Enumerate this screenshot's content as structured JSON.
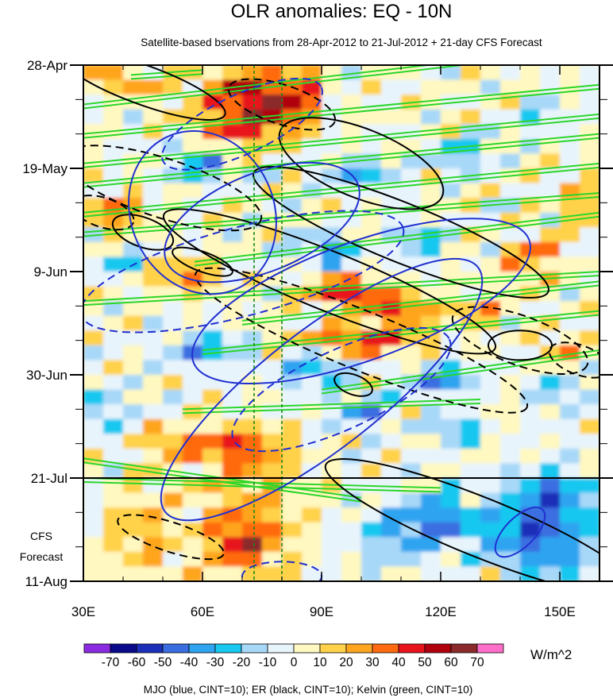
{
  "chart_data": {
    "type": "heatmap",
    "title": "OLR anomalies: EQ - 10N",
    "subtitle": "Satellite-based bservations from 28-Apr-2012 to 21-Jul-2012 + 21-day CFS Forecast",
    "x_axis": {
      "range": [
        30,
        160
      ],
      "ticks": [
        {
          "value": 30,
          "label": "30E"
        },
        {
          "value": 60,
          "label": "60E"
        },
        {
          "value": 90,
          "label": "90E"
        },
        {
          "value": 120,
          "label": "120E"
        },
        {
          "value": 150,
          "label": "150E"
        }
      ]
    },
    "y_axis": {
      "range_days": [
        0,
        105
      ],
      "direction": "top-to-bottom",
      "ticks": [
        {
          "day": 0,
          "label": "28-Apr"
        },
        {
          "day": 21,
          "label": "19-May"
        },
        {
          "day": 42,
          "label": "9-Jun"
        },
        {
          "day": 63,
          "label": "30-Jun"
        },
        {
          "day": 84,
          "label": "21-Jul"
        },
        {
          "day": 105,
          "label": "11-Aug"
        }
      ]
    },
    "forecast_label": [
      "CFS",
      "Forecast"
    ],
    "forecast_start_day": 84,
    "reference_longitudes": [
      73,
      80
    ],
    "colorbar": {
      "unit": "W/m^2",
      "labels": [
        "-70",
        "-60",
        "-50",
        "-40",
        "-30",
        "-20",
        "-10",
        "0",
        "10",
        "20",
        "30",
        "40",
        "50",
        "60",
        "70"
      ],
      "colors": [
        "#8a2be2",
        "#0a0a8a",
        "#1c2fb8",
        "#3a6ee0",
        "#2fa4f0",
        "#18c8f0",
        "#a8d8f8",
        "#e8f4fc",
        "#fff8c0",
        "#ffd24a",
        "#ffa51e",
        "#ff6a10",
        "#e8141c",
        "#b00010",
        "#8a2a2a",
        "#ff6ec8"
      ]
    },
    "legend_text": "MJO (blue, CINT=10); ER (black, CINT=10); Kelvin (green, CINT=10)",
    "series": [
      {
        "name": "MJO",
        "color": "#2030d0"
      },
      {
        "name": "ER",
        "color": "#000000"
      },
      {
        "name": "Kelvin",
        "color": "#20d020"
      }
    ],
    "olr_blobs": [
      {
        "lon": 70,
        "day": 6,
        "value": 48,
        "rl": 10,
        "rd": 6
      },
      {
        "lon": 80,
        "day": 9,
        "value": 40,
        "rl": 8,
        "rd": 5
      },
      {
        "lon": 67,
        "day": 14,
        "value": 30,
        "rl": 9,
        "rd": 4
      },
      {
        "lon": 86,
        "day": 4,
        "value": 36,
        "rl": 4,
        "rd": 4
      },
      {
        "lon": 34,
        "day": 2,
        "value": 28,
        "rl": 5,
        "rd": 3
      },
      {
        "lon": 45,
        "day": 4,
        "value": 25,
        "rl": 6,
        "rd": 3
      },
      {
        "lon": 38,
        "day": 30,
        "value": 28,
        "rl": 8,
        "rd": 4
      },
      {
        "lon": 97,
        "day": 46,
        "value": 50,
        "rl": 10,
        "rd": 3
      },
      {
        "lon": 110,
        "day": 50,
        "value": 38,
        "rl": 9,
        "rd": 3
      },
      {
        "lon": 130,
        "day": 50,
        "value": 30,
        "rl": 6,
        "rd": 3
      },
      {
        "lon": 100,
        "day": 56,
        "value": 42,
        "rl": 14,
        "rd": 3
      },
      {
        "lon": 55,
        "day": 43,
        "value": 30,
        "rl": 10,
        "rd": 3
      },
      {
        "lon": 145,
        "day": 38,
        "value": 35,
        "rl": 6,
        "rd": 3
      },
      {
        "lon": 140,
        "day": 42,
        "value": 30,
        "rl": 5,
        "rd": 2
      },
      {
        "lon": 68,
        "day": 78,
        "value": 38,
        "rl": 10,
        "rd": 4
      },
      {
        "lon": 52,
        "day": 77,
        "value": 28,
        "rl": 7,
        "rd": 3
      },
      {
        "lon": 70,
        "day": 98,
        "value": 35,
        "rl": 8,
        "rd": 5
      },
      {
        "lon": 72,
        "day": 90,
        "value": 22,
        "rl": 12,
        "rd": 12
      },
      {
        "lon": 45,
        "day": 95,
        "value": 18,
        "rl": 10,
        "rd": 10
      },
      {
        "lon": 150,
        "day": 58,
        "value": 24,
        "rl": 6,
        "rd": 3
      },
      {
        "lon": 155,
        "day": 28,
        "value": 22,
        "rl": 5,
        "rd": 4
      },
      {
        "lon": 60,
        "day": 20,
        "value": -36,
        "rl": 6,
        "rd": 4
      },
      {
        "lon": 100,
        "day": 22,
        "value": -30,
        "rl": 8,
        "rd": 3
      },
      {
        "lon": 125,
        "day": 18,
        "value": -28,
        "rl": 7,
        "rd": 3
      },
      {
        "lon": 92,
        "day": 38,
        "value": -40,
        "rl": 7,
        "rd": 3
      },
      {
        "lon": 115,
        "day": 36,
        "value": -32,
        "rl": 6,
        "rd": 3
      },
      {
        "lon": 60,
        "day": 58,
        "value": -36,
        "rl": 9,
        "rd": 3
      },
      {
        "lon": 88,
        "day": 62,
        "value": -40,
        "rl": 8,
        "rd": 3
      },
      {
        "lon": 120,
        "day": 64,
        "value": -38,
        "rl": 8,
        "rd": 3
      },
      {
        "lon": 100,
        "day": 70,
        "value": -34,
        "rl": 7,
        "rd": 3
      },
      {
        "lon": 125,
        "day": 74,
        "value": -30,
        "rl": 6,
        "rd": 3
      },
      {
        "lon": 120,
        "day": 92,
        "value": -36,
        "rl": 10,
        "rd": 5
      },
      {
        "lon": 148,
        "day": 88,
        "value": -42,
        "rl": 10,
        "rd": 6
      },
      {
        "lon": 140,
        "day": 96,
        "value": -34,
        "rl": 12,
        "rd": 6
      },
      {
        "lon": 150,
        "day": 100,
        "value": -28,
        "rl": 8,
        "rd": 6
      },
      {
        "lon": 110,
        "day": 96,
        "value": -24,
        "rl": 10,
        "rd": 6
      },
      {
        "lon": 40,
        "day": 40,
        "value": -26,
        "rl": 6,
        "rd": 3
      },
      {
        "lon": 35,
        "day": 70,
        "value": -28,
        "rl": 5,
        "rd": 4
      },
      {
        "lon": 145,
        "day": 10,
        "value": -22,
        "rl": 6,
        "rd": 3
      },
      {
        "lon": 150,
        "day": 66,
        "value": -30,
        "rl": 6,
        "rd": 3
      }
    ],
    "mjo_contours": [
      {
        "lon": 60,
        "day": 30,
        "rl": 18,
        "rd": 17,
        "angle": -25,
        "dashed": false
      },
      {
        "lon": 75,
        "day": 32,
        "rl": 26,
        "rd": 10,
        "angle": -22,
        "dashed": false
      },
      {
        "lon": 100,
        "day": 48,
        "rl": 45,
        "rd": 12,
        "angle": -20,
        "dashed": false
      },
      {
        "lon": 90,
        "day": 66,
        "rl": 50,
        "rd": 12,
        "angle": -38,
        "dashed": false
      },
      {
        "lon": 70,
        "day": 12,
        "rl": 22,
        "rd": 6,
        "angle": -25,
        "dashed": true
      },
      {
        "lon": 70,
        "day": 42,
        "rl": 42,
        "rd": 9,
        "angle": -15,
        "dashed": true
      },
      {
        "lon": 95,
        "day": 66,
        "rl": 30,
        "rd": 8,
        "angle": -25,
        "dashed": true
      },
      {
        "lon": 140,
        "day": 95,
        "rl": 8,
        "rd": 3,
        "angle": -45,
        "dashed": false
      },
      {
        "lon": 80,
        "day": 104,
        "rl": 10,
        "rd": 3,
        "angle": 0,
        "dashed": true
      }
    ],
    "er_contours": [
      {
        "lon": 45,
        "day": 4,
        "rl": 22,
        "rd": 4,
        "angle": 20,
        "dashed": false
      },
      {
        "lon": 100,
        "day": 20,
        "rl": 22,
        "rd": 7,
        "angle": 22,
        "dashed": false
      },
      {
        "lon": 110,
        "day": 34,
        "rl": 40,
        "rd": 6,
        "angle": 22,
        "dashed": false
      },
      {
        "lon": 92,
        "day": 44,
        "rl": 45,
        "rd": 6,
        "angle": 22,
        "dashed": false
      },
      {
        "lon": 45,
        "day": 34,
        "rl": 8,
        "rd": 3,
        "angle": 20,
        "dashed": false
      },
      {
        "lon": 60,
        "day": 40,
        "rl": 8,
        "rd": 2,
        "angle": 20,
        "dashed": false
      },
      {
        "lon": 140,
        "day": 57,
        "rl": 8,
        "rd": 3,
        "angle": 0,
        "dashed": false
      },
      {
        "lon": 98,
        "day": 65,
        "rl": 5,
        "rd": 2,
        "angle": 20,
        "dashed": false
      },
      {
        "lon": 130,
        "day": 94,
        "rl": 42,
        "rd": 6,
        "angle": 22,
        "dashed": false
      },
      {
        "lon": 50,
        "day": 25,
        "rl": 26,
        "rd": 6,
        "angle": 18,
        "dashed": true
      },
      {
        "lon": 35,
        "day": 30,
        "rl": 8,
        "rd": 3,
        "angle": 18,
        "dashed": true
      },
      {
        "lon": 80,
        "day": 8,
        "rl": 14,
        "rd": 4,
        "angle": 18,
        "dashed": true
      },
      {
        "lon": 100,
        "day": 56,
        "rl": 45,
        "rd": 6,
        "angle": 22,
        "dashed": true
      },
      {
        "lon": 140,
        "day": 56,
        "rl": 18,
        "rd": 5,
        "angle": 20,
        "dashed": true
      },
      {
        "lon": 52,
        "day": 96,
        "rl": 14,
        "rd": 3,
        "angle": 18,
        "dashed": true
      },
      {
        "lon": 155,
        "day": 60,
        "rl": 8,
        "rd": 3,
        "angle": 20,
        "dashed": true
      }
    ],
    "kelvin_lines": [
      {
        "lon0": 30,
        "day0": 8,
        "lon1": 160,
        "day1": -4
      },
      {
        "lon0": 30,
        "day0": 14,
        "lon1": 160,
        "day1": 4
      },
      {
        "lon0": 30,
        "day0": 20,
        "lon1": 160,
        "day1": 10
      },
      {
        "lon0": 30,
        "day0": 24,
        "lon1": 160,
        "day1": 14
      },
      {
        "lon0": 30,
        "day0": 30,
        "lon1": 160,
        "day1": 20
      },
      {
        "lon0": 30,
        "day0": 34,
        "lon1": 160,
        "day1": 26
      },
      {
        "lon0": 58,
        "day0": 40,
        "lon1": 160,
        "day1": 30
      },
      {
        "lon0": 30,
        "day0": 48,
        "lon1": 160,
        "day1": 42
      },
      {
        "lon0": 70,
        "day0": 52,
        "lon1": 160,
        "day1": 44
      },
      {
        "lon0": 60,
        "day0": 58,
        "lon1": 160,
        "day1": 50
      },
      {
        "lon0": 90,
        "day0": 66,
        "lon1": 160,
        "day1": 58
      },
      {
        "lon0": 55,
        "day0": 70,
        "lon1": 130,
        "day1": 68
      },
      {
        "lon0": 30,
        "day0": 80,
        "lon1": 100,
        "day1": 88
      },
      {
        "lon0": 30,
        "day0": 84,
        "lon1": 120,
        "day1": 86
      },
      {
        "lon0": 42,
        "day0": 2,
        "lon1": 60,
        "day1": 1
      }
    ]
  }
}
